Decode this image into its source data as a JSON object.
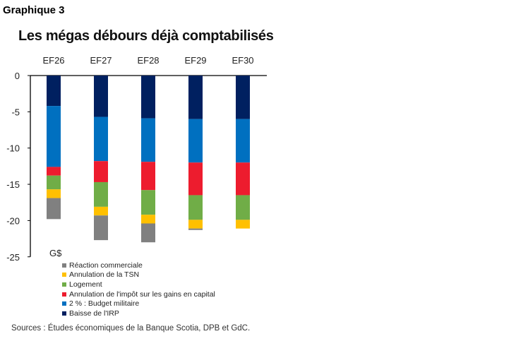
{
  "label": "Graphique 3",
  "chart_data": {
    "type": "bar",
    "stacked": true,
    "title": "Les mégas débours déjà comptabilisés",
    "unit_label": "G$",
    "categories": [
      "EF26",
      "EF27",
      "EF28",
      "EF29",
      "EF30"
    ],
    "ylim": [
      -25,
      0
    ],
    "yticks": [
      0,
      -5,
      -10,
      -15,
      -20,
      -25
    ],
    "grid": false,
    "legend_position": "bottom",
    "series": [
      {
        "name": "Baisse de l'IRP",
        "color": "#002060",
        "values": [
          -4.2,
          -5.7,
          -5.9,
          -6.0,
          -6.0
        ]
      },
      {
        "name": "2 % : Budget militaire",
        "color": "#0070C0",
        "values": [
          -8.4,
          -6.1,
          -6.0,
          -6.0,
          -6.0
        ]
      },
      {
        "name": "Annulation de l'impôt sur les gains en capital",
        "color": "#ED1C2E",
        "values": [
          -1.2,
          -2.9,
          -3.9,
          -4.5,
          -4.5
        ]
      },
      {
        "name": "Logement",
        "color": "#70AD47",
        "values": [
          -1.9,
          -3.4,
          -3.4,
          -3.4,
          -3.4
        ]
      },
      {
        "name": "Annulation de la TSN",
        "color": "#FFC000",
        "values": [
          -1.2,
          -1.2,
          -1.2,
          -1.2,
          -1.2
        ]
      },
      {
        "name": "Réaction commerciale",
        "color": "#808080",
        "values": [
          -2.9,
          -3.4,
          -2.6,
          -0.2,
          0
        ]
      }
    ]
  },
  "sources": "Sources : Études économiques de la Banque Scotia, DPB et GdC."
}
